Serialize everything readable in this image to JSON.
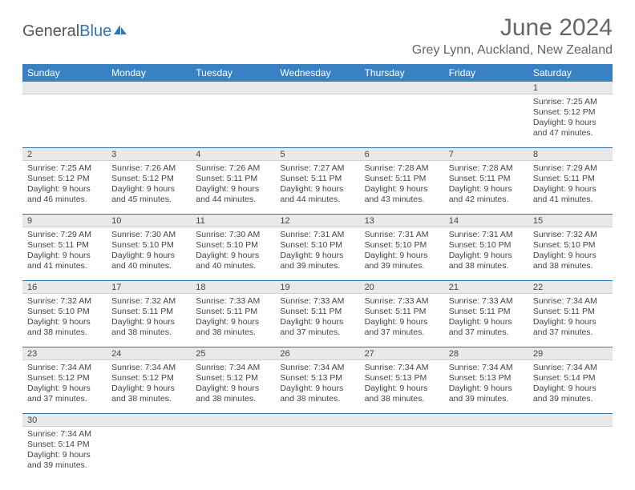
{
  "logo": {
    "text1": "General",
    "text2": "Blue"
  },
  "title": "June 2024",
  "location": "Grey Lynn, Auckland, New Zealand",
  "colors": {
    "header_bg": "#3a81c4",
    "header_text": "#ffffff",
    "daynum_bg": "#e9e9e9",
    "row_border": "#2e75b6",
    "text": "#444444",
    "title": "#666666"
  },
  "weekdays": [
    "Sunday",
    "Monday",
    "Tuesday",
    "Wednesday",
    "Thursday",
    "Friday",
    "Saturday"
  ],
  "weeks": [
    [
      null,
      null,
      null,
      null,
      null,
      null,
      {
        "n": "1",
        "sr": "Sunrise: 7:25 AM",
        "ss": "Sunset: 5:12 PM",
        "d1": "Daylight: 9 hours",
        "d2": "and 47 minutes."
      }
    ],
    [
      {
        "n": "2",
        "sr": "Sunrise: 7:25 AM",
        "ss": "Sunset: 5:12 PM",
        "d1": "Daylight: 9 hours",
        "d2": "and 46 minutes."
      },
      {
        "n": "3",
        "sr": "Sunrise: 7:26 AM",
        "ss": "Sunset: 5:12 PM",
        "d1": "Daylight: 9 hours",
        "d2": "and 45 minutes."
      },
      {
        "n": "4",
        "sr": "Sunrise: 7:26 AM",
        "ss": "Sunset: 5:11 PM",
        "d1": "Daylight: 9 hours",
        "d2": "and 44 minutes."
      },
      {
        "n": "5",
        "sr": "Sunrise: 7:27 AM",
        "ss": "Sunset: 5:11 PM",
        "d1": "Daylight: 9 hours",
        "d2": "and 44 minutes."
      },
      {
        "n": "6",
        "sr": "Sunrise: 7:28 AM",
        "ss": "Sunset: 5:11 PM",
        "d1": "Daylight: 9 hours",
        "d2": "and 43 minutes."
      },
      {
        "n": "7",
        "sr": "Sunrise: 7:28 AM",
        "ss": "Sunset: 5:11 PM",
        "d1": "Daylight: 9 hours",
        "d2": "and 42 minutes."
      },
      {
        "n": "8",
        "sr": "Sunrise: 7:29 AM",
        "ss": "Sunset: 5:11 PM",
        "d1": "Daylight: 9 hours",
        "d2": "and 41 minutes."
      }
    ],
    [
      {
        "n": "9",
        "sr": "Sunrise: 7:29 AM",
        "ss": "Sunset: 5:11 PM",
        "d1": "Daylight: 9 hours",
        "d2": "and 41 minutes."
      },
      {
        "n": "10",
        "sr": "Sunrise: 7:30 AM",
        "ss": "Sunset: 5:10 PM",
        "d1": "Daylight: 9 hours",
        "d2": "and 40 minutes."
      },
      {
        "n": "11",
        "sr": "Sunrise: 7:30 AM",
        "ss": "Sunset: 5:10 PM",
        "d1": "Daylight: 9 hours",
        "d2": "and 40 minutes."
      },
      {
        "n": "12",
        "sr": "Sunrise: 7:31 AM",
        "ss": "Sunset: 5:10 PM",
        "d1": "Daylight: 9 hours",
        "d2": "and 39 minutes."
      },
      {
        "n": "13",
        "sr": "Sunrise: 7:31 AM",
        "ss": "Sunset: 5:10 PM",
        "d1": "Daylight: 9 hours",
        "d2": "and 39 minutes."
      },
      {
        "n": "14",
        "sr": "Sunrise: 7:31 AM",
        "ss": "Sunset: 5:10 PM",
        "d1": "Daylight: 9 hours",
        "d2": "and 38 minutes."
      },
      {
        "n": "15",
        "sr": "Sunrise: 7:32 AM",
        "ss": "Sunset: 5:10 PM",
        "d1": "Daylight: 9 hours",
        "d2": "and 38 minutes."
      }
    ],
    [
      {
        "n": "16",
        "sr": "Sunrise: 7:32 AM",
        "ss": "Sunset: 5:10 PM",
        "d1": "Daylight: 9 hours",
        "d2": "and 38 minutes."
      },
      {
        "n": "17",
        "sr": "Sunrise: 7:32 AM",
        "ss": "Sunset: 5:11 PM",
        "d1": "Daylight: 9 hours",
        "d2": "and 38 minutes."
      },
      {
        "n": "18",
        "sr": "Sunrise: 7:33 AM",
        "ss": "Sunset: 5:11 PM",
        "d1": "Daylight: 9 hours",
        "d2": "and 38 minutes."
      },
      {
        "n": "19",
        "sr": "Sunrise: 7:33 AM",
        "ss": "Sunset: 5:11 PM",
        "d1": "Daylight: 9 hours",
        "d2": "and 37 minutes."
      },
      {
        "n": "20",
        "sr": "Sunrise: 7:33 AM",
        "ss": "Sunset: 5:11 PM",
        "d1": "Daylight: 9 hours",
        "d2": "and 37 minutes."
      },
      {
        "n": "21",
        "sr": "Sunrise: 7:33 AM",
        "ss": "Sunset: 5:11 PM",
        "d1": "Daylight: 9 hours",
        "d2": "and 37 minutes."
      },
      {
        "n": "22",
        "sr": "Sunrise: 7:34 AM",
        "ss": "Sunset: 5:11 PM",
        "d1": "Daylight: 9 hours",
        "d2": "and 37 minutes."
      }
    ],
    [
      {
        "n": "23",
        "sr": "Sunrise: 7:34 AM",
        "ss": "Sunset: 5:12 PM",
        "d1": "Daylight: 9 hours",
        "d2": "and 37 minutes."
      },
      {
        "n": "24",
        "sr": "Sunrise: 7:34 AM",
        "ss": "Sunset: 5:12 PM",
        "d1": "Daylight: 9 hours",
        "d2": "and 38 minutes."
      },
      {
        "n": "25",
        "sr": "Sunrise: 7:34 AM",
        "ss": "Sunset: 5:12 PM",
        "d1": "Daylight: 9 hours",
        "d2": "and 38 minutes."
      },
      {
        "n": "26",
        "sr": "Sunrise: 7:34 AM",
        "ss": "Sunset: 5:13 PM",
        "d1": "Daylight: 9 hours",
        "d2": "and 38 minutes."
      },
      {
        "n": "27",
        "sr": "Sunrise: 7:34 AM",
        "ss": "Sunset: 5:13 PM",
        "d1": "Daylight: 9 hours",
        "d2": "and 38 minutes."
      },
      {
        "n": "28",
        "sr": "Sunrise: 7:34 AM",
        "ss": "Sunset: 5:13 PM",
        "d1": "Daylight: 9 hours",
        "d2": "and 39 minutes."
      },
      {
        "n": "29",
        "sr": "Sunrise: 7:34 AM",
        "ss": "Sunset: 5:14 PM",
        "d1": "Daylight: 9 hours",
        "d2": "and 39 minutes."
      }
    ],
    [
      {
        "n": "30",
        "sr": "Sunrise: 7:34 AM",
        "ss": "Sunset: 5:14 PM",
        "d1": "Daylight: 9 hours",
        "d2": "and 39 minutes."
      },
      null,
      null,
      null,
      null,
      null,
      null
    ]
  ]
}
